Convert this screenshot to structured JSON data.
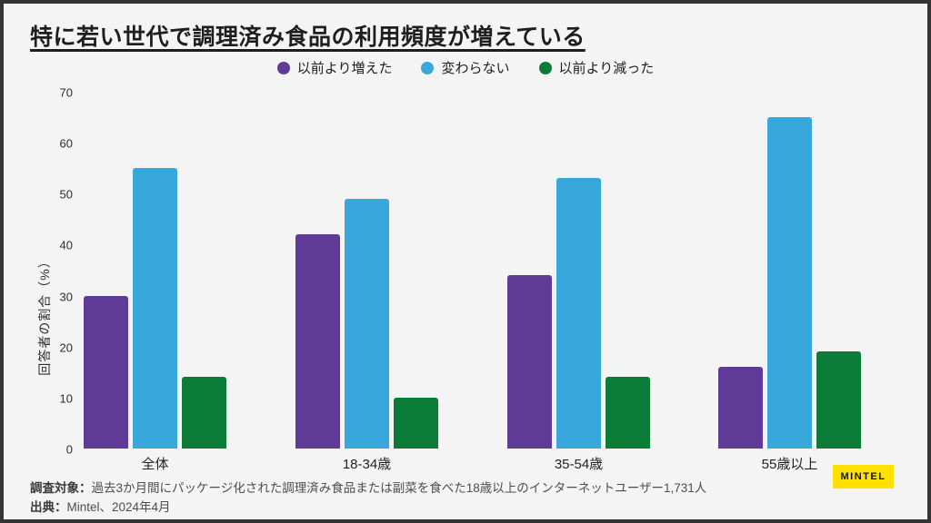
{
  "title": "特に若い世代で調理済み食品の利用頻度が増えている",
  "chart_data": {
    "type": "bar",
    "title": "特に若い世代で調理済み食品の利用頻度が増えている",
    "categories": [
      "全体",
      "18-34歳",
      "35-54歳",
      "55歳以上"
    ],
    "series": [
      {
        "name": "以前より増えた",
        "color": "#5f3a96",
        "values": [
          30,
          42,
          34,
          16
        ]
      },
      {
        "name": "変わらない",
        "color": "#38a8dc",
        "values": [
          55,
          49,
          53,
          65
        ]
      },
      {
        "name": "以前より減った",
        "color": "#0b7c37",
        "values": [
          14,
          10,
          14,
          19
        ]
      }
    ],
    "xlabel": "",
    "ylabel": "回答者の割合（%）",
    "ylim": [
      0,
      70
    ],
    "yticks": [
      0,
      10,
      20,
      30,
      40,
      50,
      60,
      70
    ],
    "grid": false,
    "legend_position": "top"
  },
  "footer": {
    "survey_label": "調査対象：",
    "survey_text": "過去3か月間にパッケージ化された調理済み食品または副菜を食べた18歳以上のインターネットユーザー1,731人",
    "source_label": "出典：",
    "source_text": "Mintel、2024年4月"
  },
  "logo": {
    "text": "MINTEL",
    "bg_color": "#ffe100",
    "text_color": "#161616"
  },
  "colors": {
    "background": "#f4f4f5",
    "frame_border": "#343434",
    "title_text": "#1e1e1e",
    "footer_text": "#4d4d4d"
  }
}
